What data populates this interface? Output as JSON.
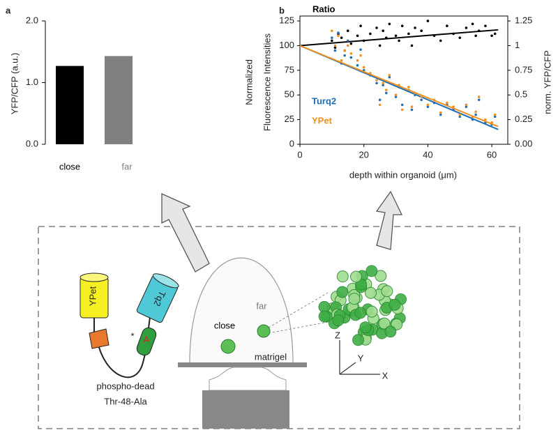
{
  "chart_data": [
    {
      "type": "bar",
      "panel": "a",
      "ylabel": "YFP/CFP (a.u.)",
      "categories": [
        "close",
        "far"
      ],
      "values": [
        1.27,
        1.43
      ],
      "colors": [
        "#000000",
        "#808080"
      ],
      "label_colors": [
        "#000000",
        "#808080"
      ],
      "ylim": [
        0,
        2.0
      ],
      "yticks": [
        {
          "value": 0,
          "label": "0.0"
        },
        {
          "value": 1,
          "label": "1.0"
        },
        {
          "value": 2,
          "label": "2.0"
        }
      ]
    },
    {
      "type": "scatter",
      "panel": "b",
      "ylabel": [
        "Normalized",
        "Fluorescence Intensities"
      ],
      "y2label": "norm. YFP/CFP",
      "xlabel": "depth within organoid (μm)",
      "xlim": [
        0,
        65
      ],
      "xticks": [
        0,
        20,
        40,
        60
      ],
      "ylim": [
        0,
        130
      ],
      "yticks": [
        0,
        25,
        50,
        75,
        100,
        125
      ],
      "y2lim": [
        0,
        1.3
      ],
      "y2ticks": [
        {
          "value": 0,
          "label": "0.00"
        },
        0.25,
        0.5,
        0.75,
        1,
        1.25
      ],
      "x": [
        10,
        11,
        12,
        13,
        14,
        15,
        16,
        18,
        19,
        20,
        22,
        24,
        25,
        26,
        27,
        28,
        30,
        31,
        32,
        34,
        35,
        36,
        38,
        40,
        42,
        44,
        46,
        48,
        50,
        52,
        54,
        55,
        56,
        58,
        60,
        61
      ],
      "series": [
        {
          "name": "Ratio",
          "color": "#000000",
          "axis": "y2",
          "values": [
            1.05,
            0.98,
            1.12,
            1.08,
            0.95,
            1.15,
            1.02,
            1.1,
            1.2,
            1.05,
            1.12,
            1.18,
            1.0,
            1.15,
            1.08,
            1.22,
            1.1,
            1.05,
            1.2,
            1.12,
            1.0,
            1.18,
            1.15,
            1.25,
            1.1,
            1.05,
            1.2,
            1.12,
            1.08,
            1.18,
            1.22,
            1.1,
            1.15,
            1.2,
            1.1,
            1.12
          ],
          "fit": {
            "x": [
              0,
              62
            ],
            "values": [
              1.0,
              1.16
            ]
          }
        },
        {
          "name": "Turq2",
          "color": "#1f6fb5",
          "values": [
            108,
            95,
            113,
            82,
            90,
            105,
            88,
            80,
            96,
            75,
            70,
            62,
            45,
            60,
            52,
            68,
            48,
            58,
            40,
            55,
            35,
            50,
            45,
            38,
            42,
            30,
            40,
            35,
            28,
            38,
            25,
            30,
            45,
            22,
            20,
            28
          ],
          "fit": {
            "x": [
              0,
              62
            ],
            "values": [
              100,
              15
            ]
          }
        },
        {
          "name": "YPet",
          "color": "#f0901e",
          "values": [
            115,
            100,
            110,
            85,
            95,
            100,
            92,
            85,
            90,
            78,
            72,
            65,
            40,
            62,
            55,
            70,
            50,
            60,
            35,
            58,
            38,
            52,
            48,
            40,
            45,
            32,
            42,
            38,
            30,
            40,
            28,
            33,
            48,
            25,
            22,
            30
          ],
          "fit": {
            "x": [
              0,
              62
            ],
            "values": [
              100,
              18
            ]
          }
        }
      ]
    }
  ],
  "diagram": {
    "sensor": {
      "ypet": "YPet",
      "tq2": "Tq2",
      "star": "*",
      "site": "A",
      "caption": [
        "phospho-dead",
        "Thr-48-Ala"
      ]
    },
    "setup": {
      "far": "far",
      "close": "close",
      "matrigel": "matrigel"
    },
    "axes": {
      "z": "Z",
      "y": "Y",
      "x": "X"
    }
  }
}
